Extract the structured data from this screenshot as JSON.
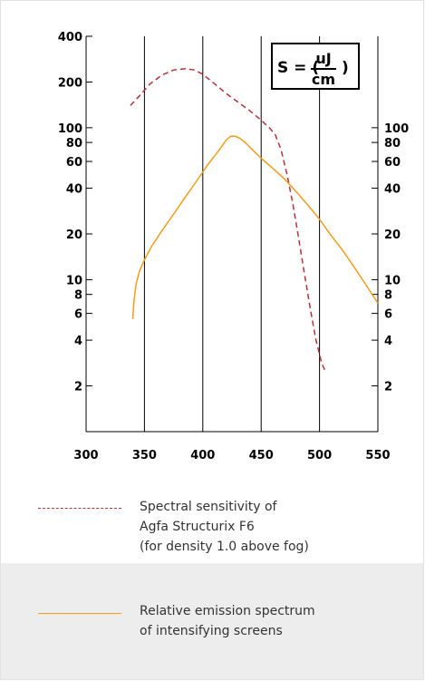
{
  "chart_data": {
    "type": "line",
    "formula": {
      "lhs": "S = (",
      "numerator": "uJ",
      "denominator": "cm",
      "rhs": ")"
    },
    "x_ticks": [
      "300",
      "350",
      "400",
      "450",
      "500",
      "550"
    ],
    "y_ticks_left": [
      "400",
      "200",
      "100",
      "80",
      "60",
      "40",
      "20",
      "10",
      "8",
      "6",
      "4",
      "2"
    ],
    "y_ticks_right": [
      "100",
      "80",
      "60",
      "40",
      "20",
      "10",
      "8",
      "6",
      "4",
      "2"
    ],
    "xlim": [
      300,
      550
    ],
    "ylim": [
      1,
      400
    ],
    "yscale": "log",
    "grid": "vertical",
    "series": [
      {
        "name": "Spectral sensitivity of Agfa Structurix F6 (for density 1.0 above fog)",
        "style": "dashed",
        "color": "#b8303a",
        "x": [
          338,
          345,
          355,
          365,
          375,
          385,
          393,
          400,
          410,
          420,
          430,
          440,
          450,
          457,
          462,
          467,
          472,
          477,
          482,
          487,
          492,
          497,
          502,
          505
        ],
        "y": [
          140,
          160,
          195,
          222,
          240,
          245,
          240,
          225,
          195,
          168,
          148,
          130,
          112,
          100,
          90,
          72,
          50,
          32,
          19,
          11,
          6.5,
          4.0,
          2.8,
          2.5
        ]
      },
      {
        "name": "Relative emission spectrum of intensifying screens",
        "style": "solid",
        "color": "#f39c1b",
        "x": [
          340,
          341,
          343,
          346,
          350,
          356,
          365,
          375,
          385,
          395,
          405,
          415,
          420,
          424,
          428,
          432,
          437,
          443,
          450,
          460,
          470,
          480,
          490,
          500,
          510,
          520,
          530,
          540,
          550
        ],
        "y": [
          5.5,
          7.2,
          9.5,
          11.5,
          13.5,
          16.5,
          21,
          27,
          35,
          45,
          58,
          73,
          83,
          88,
          88,
          85,
          79,
          71,
          63,
          54,
          46,
          38,
          31,
          25,
          19.5,
          15.5,
          12,
          9.2,
          7
        ]
      }
    ],
    "legend": [
      {
        "lines": [
          "Spectral sensitivity of",
          "Agfa Structurix F6",
          "(for density 1.0 above fog)"
        ]
      },
      {
        "lines": [
          "Relative emission spectrum",
          "of intensifying screens"
        ]
      }
    ]
  }
}
